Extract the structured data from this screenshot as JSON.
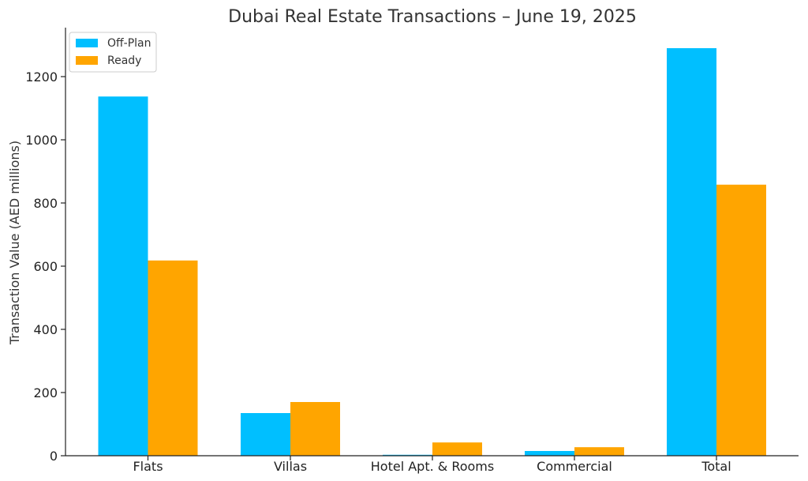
{
  "chart_data": {
    "type": "bar",
    "title": "Dubai Real Estate Transactions – June 19, 2025",
    "xlabel": "",
    "ylabel": "Transaction Value (AED millions)",
    "categories": [
      "Flats",
      "Villas",
      "Hotel Apt. & Rooms",
      "Commercial",
      "Total"
    ],
    "series": [
      {
        "name": "Off-Plan",
        "color": "#00BFFF",
        "values": [
          1137,
          135,
          3,
          15,
          1290
        ]
      },
      {
        "name": "Ready",
        "color": "#FFA500",
        "values": [
          618,
          170,
          42,
          27,
          858
        ]
      }
    ],
    "yticks": [
      0,
      200,
      400,
      600,
      800,
      1000,
      1200
    ],
    "ylim": [
      0,
      1355
    ],
    "grid": false,
    "legend_position": "top-left"
  }
}
